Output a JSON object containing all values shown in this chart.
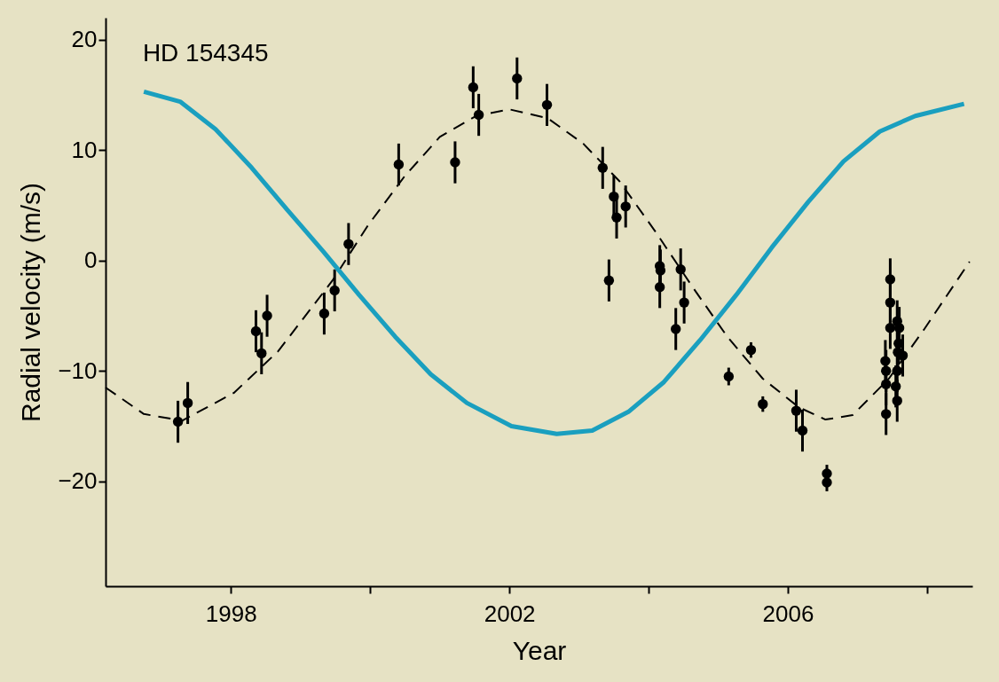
{
  "chart_data": {
    "type": "scatter",
    "title": "HD 154345",
    "xlabel": "Year",
    "ylabel": "Radial velocity (m/s)",
    "xlim": [
      1996.2,
      2008.65
    ],
    "ylim": [
      -29.5,
      22
    ],
    "xticks": [
      1998,
      {
        "value": 2000,
        "label": null
      },
      2002,
      {
        "value": 2004,
        "label": null
      },
      2006,
      {
        "value": 2008,
        "label": null
      }
    ],
    "yticks": [
      {
        "value": -20,
        "label": "−20"
      },
      {
        "value": -10,
        "label": "−10"
      },
      0,
      10,
      20
    ],
    "grid": false,
    "series": [
      {
        "color": "#000000",
        "marker": "circle",
        "x": [
          1997.24,
          1997.38,
          1998.36,
          1998.44,
          1998.52,
          1999.34,
          1999.49,
          1999.69,
          2000.41,
          2001.22,
          2001.48,
          2001.56,
          2002.11,
          2002.54,
          2003.34,
          2003.43,
          2003.5,
          2003.54,
          2003.67,
          2004.16,
          2004.17,
          2004.16,
          2004.46,
          2004.51,
          2004.39,
          2005.15,
          2005.47,
          2005.64,
          2006.12,
          2006.21,
          2006.56,
          2006.56,
          2007.47,
          2007.47,
          2007.47,
          2007.57,
          2007.6,
          2007.59,
          2007.58,
          2007.65,
          2007.4,
          2007.41,
          2007.41,
          2007.57,
          2007.55,
          2007.57,
          2007.41
        ],
        "values": [
          -14.6,
          -12.9,
          -6.4,
          -8.4,
          -5.0,
          -4.8,
          -2.7,
          1.5,
          8.7,
          8.9,
          15.7,
          13.2,
          16.5,
          14.1,
          8.4,
          -1.8,
          5.8,
          3.9,
          4.9,
          -0.5,
          -0.9,
          -2.4,
          -0.8,
          -3.8,
          -6.2,
          -10.5,
          -8.1,
          -13.0,
          -13.6,
          -15.4,
          -19.3,
          -20.1,
          -1.7,
          -3.8,
          -6.1,
          -5.5,
          -6.1,
          -7.5,
          -8.3,
          -8.6,
          -9.1,
          -10.0,
          -11.2,
          -10.0,
          -11.4,
          -12.7,
          -13.9
        ],
        "errors": [
          1.9,
          1.9,
          1.9,
          1.9,
          1.9,
          1.9,
          1.9,
          1.9,
          1.9,
          1.9,
          1.9,
          1.9,
          1.9,
          1.9,
          1.9,
          1.9,
          1.9,
          1.9,
          1.9,
          1.9,
          1.9,
          1.9,
          1.9,
          1.9,
          1.9,
          0.8,
          0.7,
          0.7,
          1.9,
          1.9,
          0.8,
          0.8,
          1.9,
          1.9,
          1.9,
          1.9,
          1.9,
          1.9,
          1.9,
          1.9,
          1.9,
          1.9,
          1.9,
          1.9,
          1.9,
          1.9,
          1.9
        ]
      },
      {
        "type": "line",
        "color": "#000000",
        "line_style": "dashed",
        "marker": "none",
        "x": [
          1996.2,
          1996.75,
          1997.3,
          1998.04,
          1998.68,
          1999.46,
          1999.97,
          2000.49,
          2001.0,
          2001.52,
          2002.0,
          2002.55,
          2003.06,
          2003.58,
          2004.1,
          2004.61,
          2005.13,
          2005.64,
          2006.16,
          2006.54,
          2006.93,
          2007.45,
          2007.96,
          2008.61
        ],
        "values": [
          -11.5,
          -13.9,
          -14.5,
          -12.0,
          -8.2,
          -1.8,
          3.2,
          7.6,
          11.2,
          13.1,
          13.7,
          12.9,
          10.6,
          7.2,
          2.6,
          -2.2,
          -6.9,
          -10.7,
          -13.3,
          -14.4,
          -14.0,
          -10.7,
          -6.2,
          -0.1
        ]
      },
      {
        "type": "line",
        "color": "#1a9fbf",
        "line_style": "solid",
        "marker": "none",
        "x": [
          1996.75,
          1997.27,
          1997.78,
          1998.3,
          1998.81,
          1999.33,
          1999.84,
          2000.36,
          2000.87,
          2001.39,
          2002.03,
          2002.68,
          2003.19,
          2003.71,
          2004.22,
          2004.74,
          2005.26,
          2005.77,
          2006.29,
          2006.8,
          2007.32,
          2007.83,
          2008.53
        ],
        "values": [
          15.3,
          14.4,
          11.9,
          8.4,
          4.6,
          0.8,
          -3.1,
          -6.9,
          -10.3,
          -12.9,
          -15.0,
          -15.7,
          -15.4,
          -13.7,
          -11.0,
          -7.2,
          -3.1,
          1.2,
          5.3,
          9.0,
          11.7,
          13.1,
          14.2
        ]
      }
    ]
  }
}
